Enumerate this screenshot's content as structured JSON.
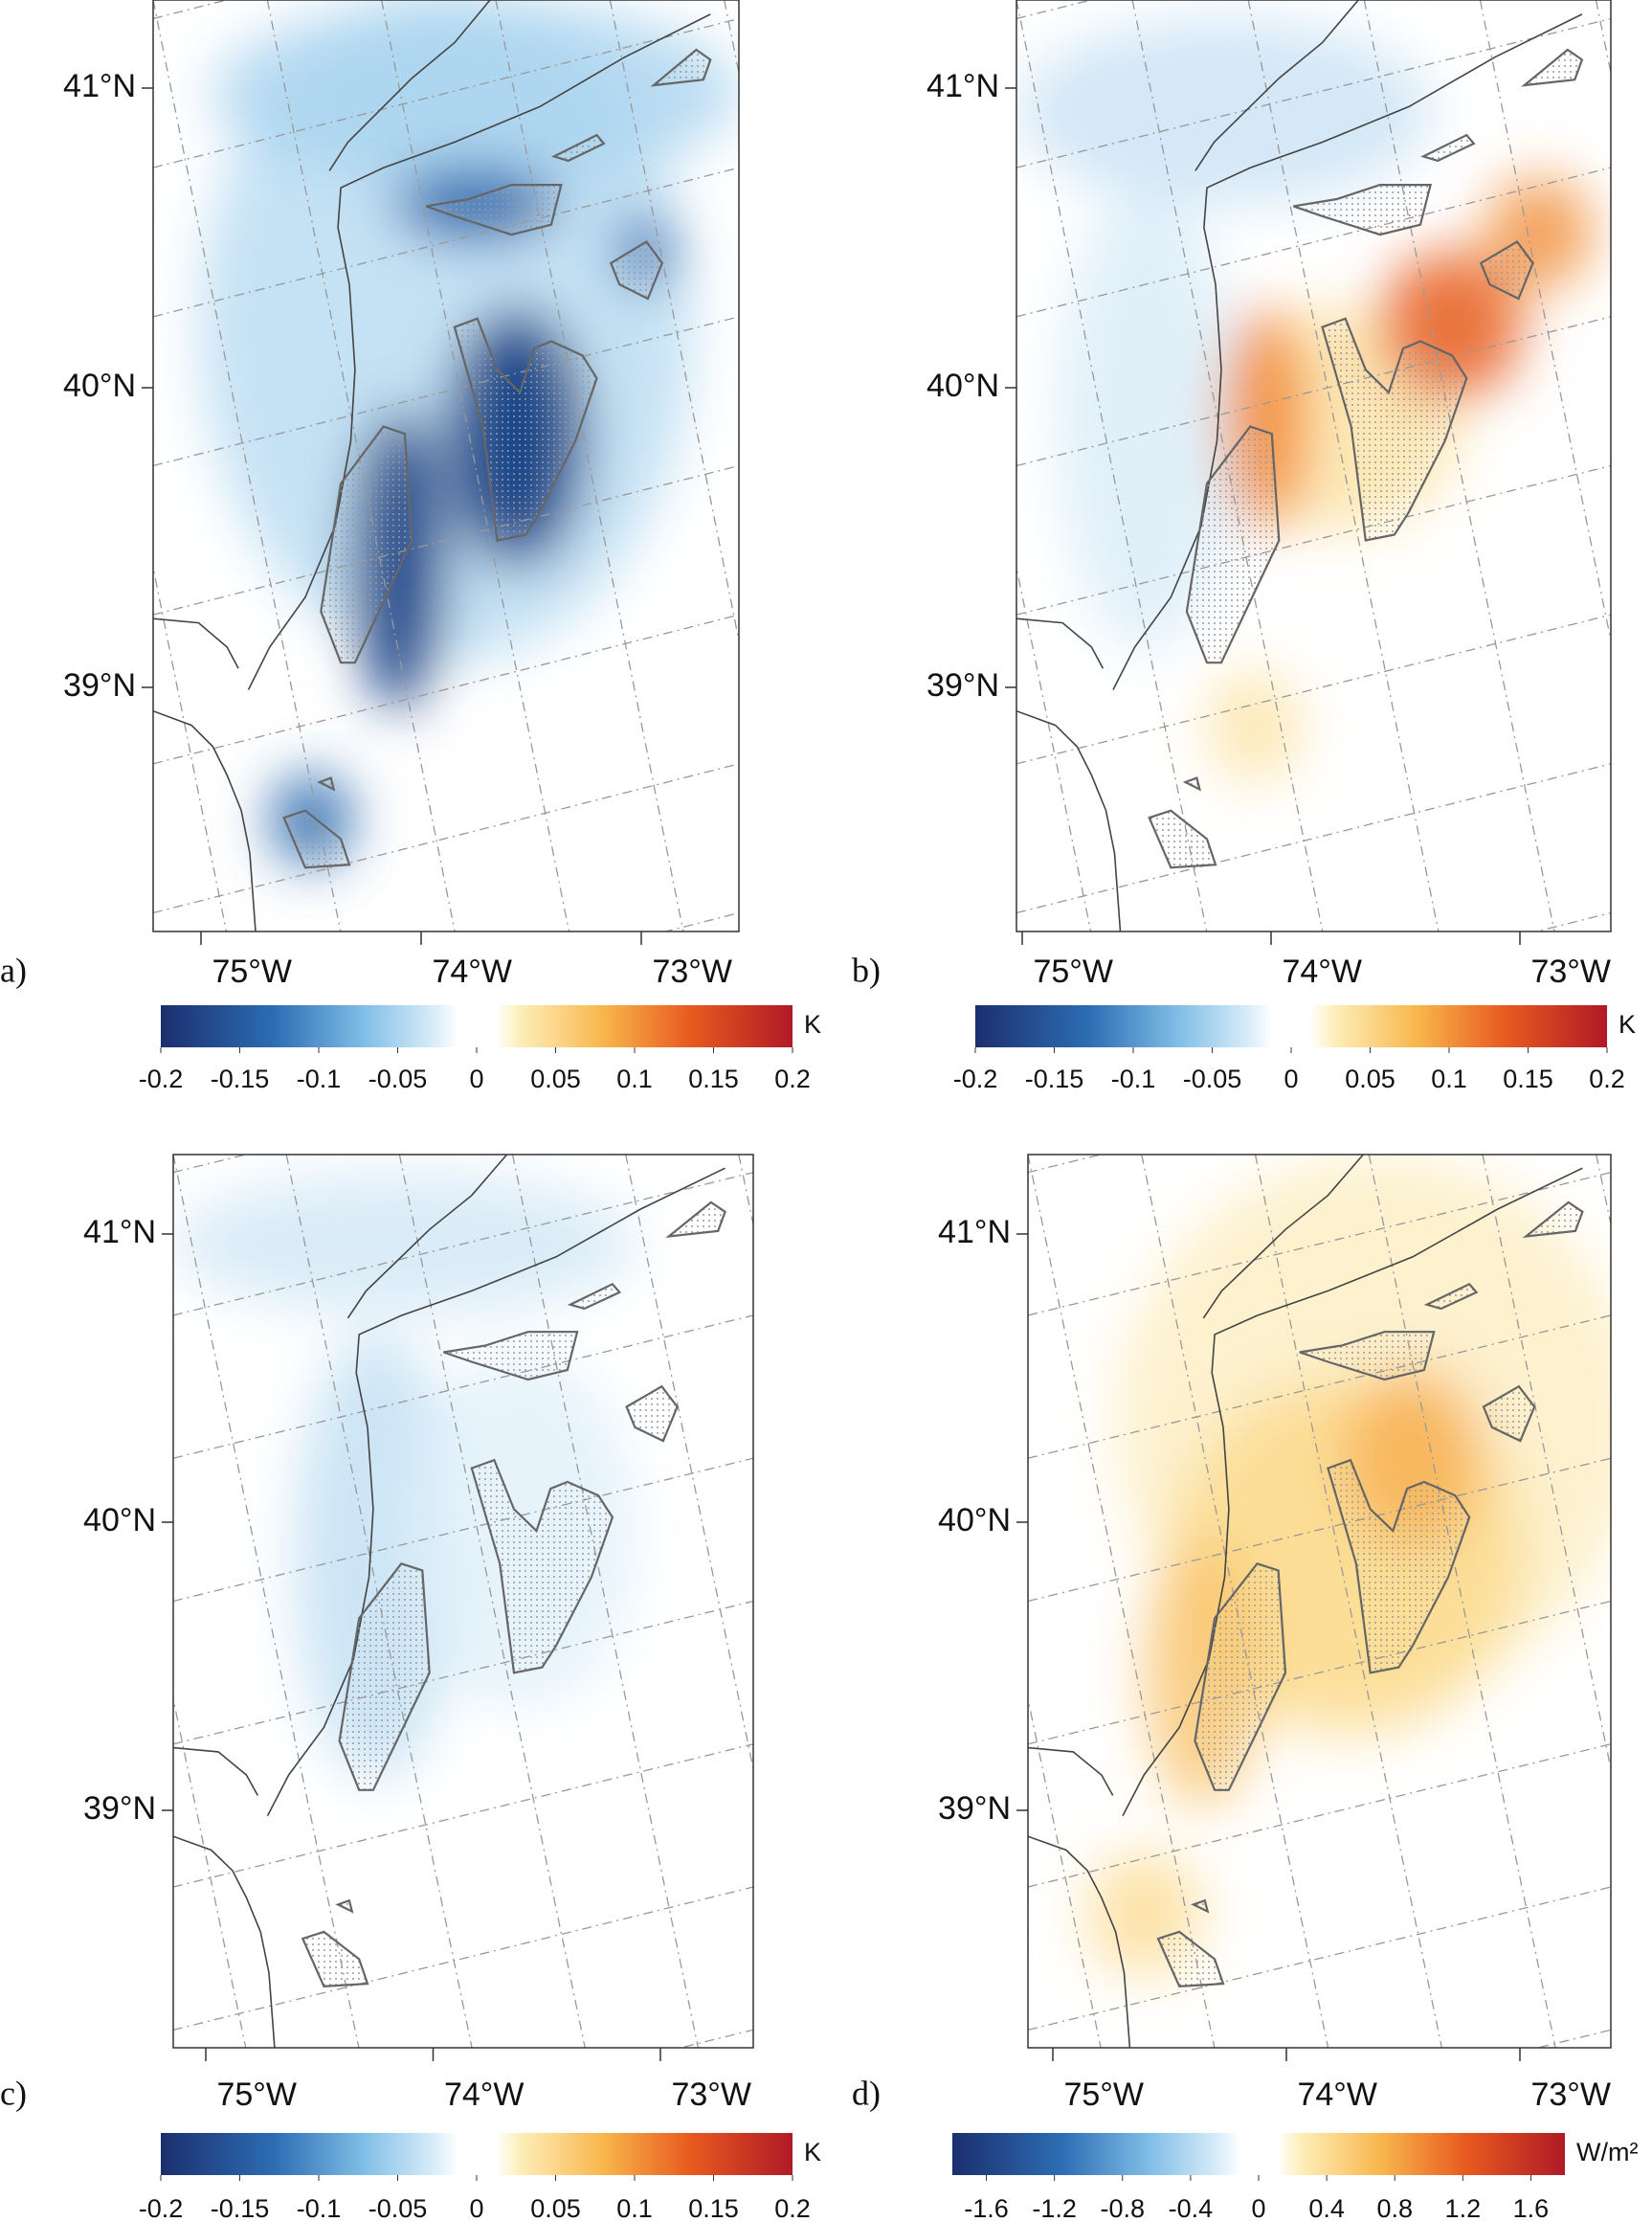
{
  "panels": [
    {
      "label": "a)",
      "lat_ticks": [
        {
          "value": 41,
          "label": "41°N"
        },
        {
          "value": 40,
          "label": "40°N"
        },
        {
          "value": 39,
          "label": "39°N"
        }
      ],
      "lon_ticks": [
        {
          "value": -75,
          "label": "75°W"
        },
        {
          "value": -74,
          "label": "74°W"
        },
        {
          "value": -73,
          "label": "73°W"
        }
      ],
      "colorbar": {
        "unit": "K",
        "lim": [
          -0.2,
          0.2
        ],
        "ticks": [
          -0.2,
          -0.15,
          -0.1,
          -0.05,
          0,
          0.05,
          0.1,
          0.15,
          0.2
        ]
      }
    },
    {
      "label": "b)",
      "lat_ticks": [
        {
          "value": 41,
          "label": "41°N"
        },
        {
          "value": 40,
          "label": "40°N"
        },
        {
          "value": 39,
          "label": "39°N"
        }
      ],
      "lon_ticks": [
        {
          "value": -75,
          "label": "75°W"
        },
        {
          "value": -74,
          "label": "74°W"
        },
        {
          "value": -73,
          "label": "73°W"
        }
      ],
      "colorbar": {
        "unit": "K",
        "lim": [
          -0.2,
          0.2
        ],
        "ticks": [
          -0.2,
          -0.15,
          -0.1,
          -0.05,
          0,
          0.05,
          0.1,
          0.15,
          0.2
        ]
      }
    },
    {
      "label": "c)",
      "lat_ticks": [
        {
          "value": 41,
          "label": "41°N"
        },
        {
          "value": 40,
          "label": "40°N"
        },
        {
          "value": 39,
          "label": "39°N"
        }
      ],
      "lon_ticks": [
        {
          "value": -75,
          "label": "75°W"
        },
        {
          "value": -74,
          "label": "74°W"
        },
        {
          "value": -73,
          "label": "73°W"
        }
      ],
      "colorbar": {
        "unit": "K",
        "lim": [
          -0.2,
          0.2
        ],
        "ticks": [
          -0.2,
          -0.15,
          -0.1,
          -0.05,
          0,
          0.05,
          0.1,
          0.15,
          0.2
        ]
      }
    },
    {
      "label": "d)",
      "lat_ticks": [
        {
          "value": 41,
          "label": "41°N"
        },
        {
          "value": 40,
          "label": "40°N"
        },
        {
          "value": 39,
          "label": "39°N"
        }
      ],
      "lon_ticks": [
        {
          "value": -75,
          "label": "75°W"
        },
        {
          "value": -74,
          "label": "74°W"
        },
        {
          "value": -73,
          "label": "73°W"
        }
      ],
      "colorbar": {
        "unit": "W/m²",
        "lim": [
          -1.8,
          1.8
        ],
        "ticks": [
          -1.6,
          -1.2,
          -0.8,
          -0.4,
          0,
          0.4,
          0.8,
          1.2,
          1.6
        ]
      }
    }
  ]
}
